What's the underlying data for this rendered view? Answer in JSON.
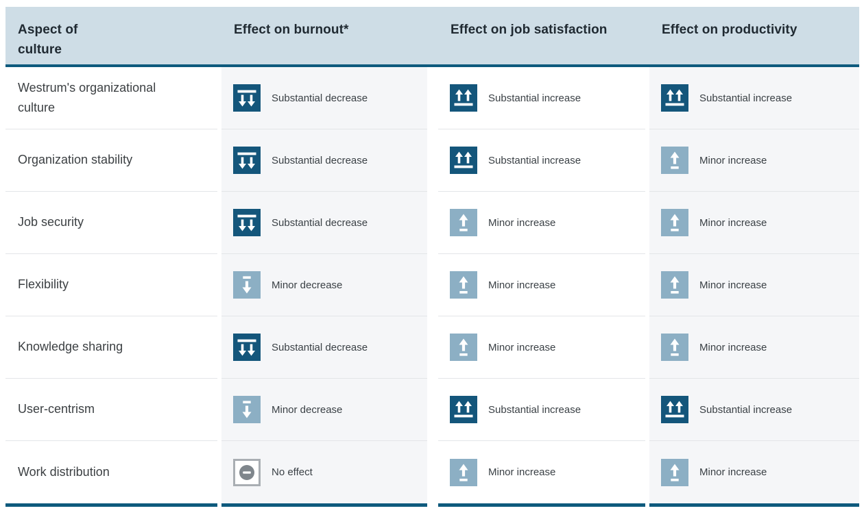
{
  "table": {
    "columns": [
      {
        "id": "aspect",
        "label": "Aspect of culture"
      },
      {
        "id": "burnout",
        "label": "Effect on burnout*"
      },
      {
        "id": "job_satisfaction",
        "label": "Effect on job satisfaction"
      },
      {
        "id": "productivity",
        "label": "Effect on productivity"
      }
    ],
    "effect_labels": {
      "substantial_decrease": "Substantial decrease",
      "substantial_increase": "Substantial increase",
      "minor_decrease": "Minor decrease",
      "minor_increase": "Minor increase",
      "no_effect": "No effect"
    },
    "rows": [
      {
        "aspect": "Westrum's organizational culture",
        "burnout": "substantial_decrease",
        "job_satisfaction": "substantial_increase",
        "productivity": "substantial_increase"
      },
      {
        "aspect": "Organization stability",
        "burnout": "substantial_decrease",
        "job_satisfaction": "substantial_increase",
        "productivity": "minor_increase"
      },
      {
        "aspect": "Job security",
        "burnout": "substantial_decrease",
        "job_satisfaction": "minor_increase",
        "productivity": "minor_increase"
      },
      {
        "aspect": "Flexibility",
        "burnout": "minor_decrease",
        "job_satisfaction": "minor_increase",
        "productivity": "minor_increase"
      },
      {
        "aspect": "Knowledge sharing",
        "burnout": "substantial_decrease",
        "job_satisfaction": "minor_increase",
        "productivity": "minor_increase"
      },
      {
        "aspect": "User-centrism",
        "burnout": "minor_decrease",
        "job_satisfaction": "substantial_increase",
        "productivity": "substantial_increase"
      },
      {
        "aspect": "Work distribution",
        "burnout": "no_effect",
        "job_satisfaction": "minor_increase",
        "productivity": "minor_increase"
      }
    ]
  },
  "colors": {
    "header_bg": "#cedde6",
    "teal_rule": "#0e5a7d",
    "substantial": "#14567b",
    "minor": "#8cafc4",
    "no_effect_fill": "#7f868c",
    "no_effect_border": "#a9aeb3",
    "tint_column_bg": "#f5f6f8"
  }
}
